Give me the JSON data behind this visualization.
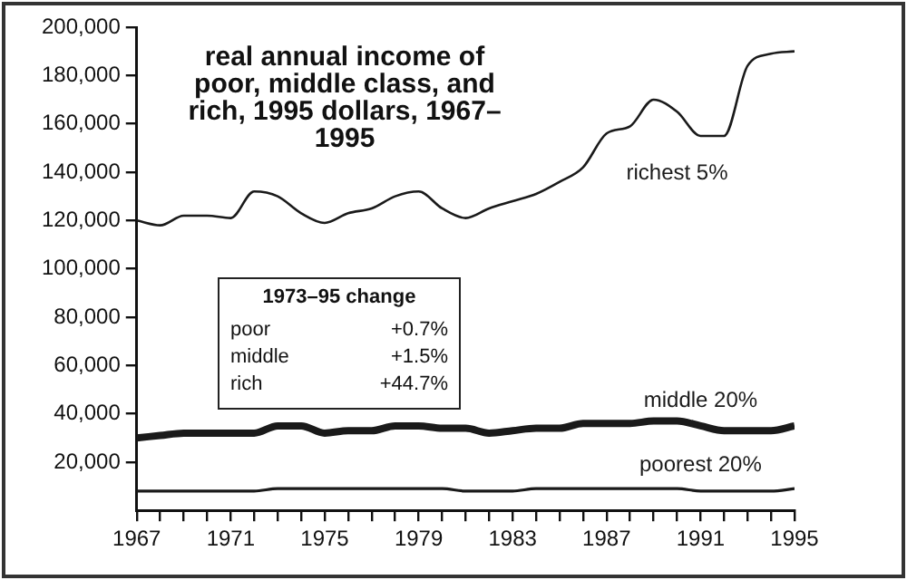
{
  "chart_data": {
    "type": "line",
    "title": "real annual income of poor, middle class, and rich, 1995 dollars, 1967–1995",
    "x": [
      1967,
      1968,
      1969,
      1970,
      1971,
      1972,
      1973,
      1974,
      1975,
      1976,
      1977,
      1978,
      1979,
      1980,
      1981,
      1982,
      1983,
      1984,
      1985,
      1986,
      1987,
      1988,
      1989,
      1990,
      1991,
      1992,
      1993,
      1994,
      1995
    ],
    "series": [
      {
        "name": "richest 5%",
        "color": "#1a1a1a",
        "values": [
          120000,
          118000,
          122000,
          122000,
          121000,
          132000,
          130000,
          123000,
          119000,
          123000,
          125000,
          130000,
          132000,
          125000,
          121000,
          125000,
          128000,
          131000,
          136000,
          142000,
          156000,
          159000,
          170000,
          165000,
          155000,
          155000,
          184000,
          189000,
          190000
        ]
      },
      {
        "name": "middle 20%",
        "color": "#1a1a1a",
        "values": [
          30000,
          31000,
          32000,
          32000,
          32000,
          32000,
          35000,
          35000,
          32000,
          33000,
          33000,
          35000,
          35000,
          34000,
          34000,
          32000,
          33000,
          34000,
          34000,
          36000,
          36000,
          36000,
          37000,
          37000,
          35000,
          33000,
          33000,
          33000,
          35000
        ]
      },
      {
        "name": "poorest 20%",
        "color": "#1a1a1a",
        "values": [
          8000,
          8000,
          8000,
          8000,
          8000,
          8000,
          9000,
          9000,
          9000,
          9000,
          9000,
          9000,
          9000,
          9000,
          8000,
          8000,
          8000,
          9000,
          9000,
          9000,
          9000,
          9000,
          9000,
          9000,
          8000,
          8000,
          8000,
          8000,
          9000
        ]
      }
    ],
    "xlim": [
      1967,
      1995
    ],
    "xticks": [
      1967,
      {
        "value": 1968,
        "label": null
      },
      {
        "value": 1969,
        "label": null
      },
      {
        "value": 1970,
        "label": null
      },
      1971,
      {
        "value": 1972,
        "label": null
      },
      {
        "value": 1973,
        "label": null
      },
      {
        "value": 1974,
        "label": null
      },
      1975,
      {
        "value": 1976,
        "label": null
      },
      {
        "value": 1977,
        "label": null
      },
      {
        "value": 1978,
        "label": null
      },
      1979,
      {
        "value": 1980,
        "label": null
      },
      {
        "value": 1981,
        "label": null
      },
      {
        "value": 1982,
        "label": null
      },
      1983,
      {
        "value": 1984,
        "label": null
      },
      {
        "value": 1985,
        "label": null
      },
      {
        "value": 1986,
        "label": null
      },
      1987,
      {
        "value": 1988,
        "label": null
      },
      {
        "value": 1989,
        "label": null
      },
      {
        "value": 1990,
        "label": null
      },
      1991,
      {
        "value": 1992,
        "label": null
      },
      {
        "value": 1993,
        "label": null
      },
      {
        "value": 1994,
        "label": null
      },
      1995
    ],
    "ylim": [
      0,
      200000
    ],
    "yticks": [
      {
        "value": 20000,
        "label": "20,000"
      },
      {
        "value": 40000,
        "label": "40,000"
      },
      {
        "value": 60000,
        "label": "60,000"
      },
      {
        "value": 80000,
        "label": "80,000"
      },
      {
        "value": 100000,
        "label": "100,000"
      },
      {
        "value": 120000,
        "label": "120,000"
      },
      {
        "value": 140000,
        "label": "140,000"
      },
      {
        "value": 160000,
        "label": "160,000"
      },
      {
        "value": 180000,
        "label": "180,000"
      },
      {
        "value": 200000,
        "label": "200,000"
      }
    ],
    "annotations": [
      "1973–95 change",
      "poor",
      "+0.7%",
      "middle",
      "+1.5%",
      "rich",
      "+44.7%"
    ],
    "grid": false,
    "legend": false,
    "marker": "none",
    "line_style": "solid"
  }
}
